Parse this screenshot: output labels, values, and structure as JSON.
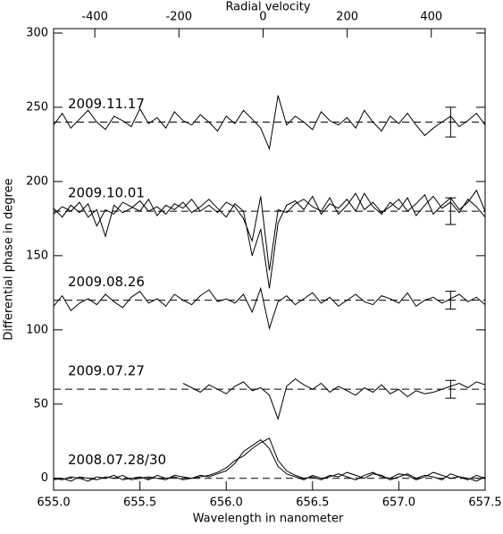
{
  "chart_data": {
    "type": "line",
    "xlabel": "Wavelength in nanometer",
    "ylabel": "Differential phase in degree",
    "x2label": "Radial velocity",
    "x": [
      655.0,
      655.05,
      655.1,
      655.15,
      655.2,
      655.25,
      655.3,
      655.35,
      655.4,
      655.45,
      655.5,
      655.55,
      655.6,
      655.65,
      655.7,
      655.75,
      655.8,
      655.85,
      655.9,
      655.95,
      656.0,
      656.05,
      656.1,
      656.15,
      656.2,
      656.25,
      656.3,
      656.35,
      656.4,
      656.45,
      656.5,
      656.55,
      656.6,
      656.65,
      656.7,
      656.75,
      656.8,
      656.85,
      656.9,
      656.95,
      657.0,
      657.05,
      657.1,
      657.15,
      657.2,
      657.25,
      657.3,
      657.35,
      657.4,
      657.45,
      657.5
    ],
    "series": [
      {
        "color": "#000000",
        "values": [
          238,
          246,
          236,
          242,
          248,
          240,
          235,
          244,
          241,
          237,
          249,
          239,
          243,
          236,
          247,
          241,
          238,
          245,
          240,
          234,
          244,
          239,
          248,
          242,
          236,
          222,
          258,
          238,
          244,
          240,
          235,
          247,
          241,
          238,
          243,
          236,
          248,
          240,
          234,
          244,
          239,
          246,
          238,
          231,
          236,
          240,
          244,
          237,
          241,
          246,
          238
        ]
      },
      {
        "color": "#000000",
        "values": [
          182,
          176,
          184,
          179,
          185,
          170,
          181,
          178,
          186,
          183,
          180,
          188,
          177,
          184,
          181,
          186,
          179,
          183,
          188,
          182,
          176,
          185,
          180,
          150,
          168,
          128,
          172,
          184,
          187,
          181,
          190,
          178,
          185,
          182,
          188,
          180,
          192,
          183,
          178,
          186,
          181,
          189,
          177,
          184,
          190,
          182,
          186,
          179,
          188,
          183,
          176
        ]
      },
      {
        "color": "#000000",
        "values": [
          178,
          183,
          180,
          186,
          176,
          181,
          163,
          184,
          179,
          182,
          187,
          180,
          183,
          178,
          185,
          182,
          188,
          180,
          184,
          179,
          186,
          183,
          175,
          160,
          190,
          140,
          181,
          179,
          185,
          188,
          183,
          180,
          189,
          178,
          184,
          192,
          181,
          186,
          179,
          183,
          188,
          180,
          185,
          191,
          178,
          184,
          189,
          181,
          186,
          194,
          180
        ]
      },
      {
        "color": "#000000",
        "values": [
          116,
          123,
          113,
          118,
          121,
          117,
          124,
          119,
          115,
          122,
          126,
          118,
          121,
          116,
          124,
          120,
          117,
          123,
          127,
          119,
          121,
          118,
          124,
          112,
          128,
          101,
          119,
          123,
          117,
          121,
          125,
          118,
          122,
          116,
          120,
          124,
          119,
          117,
          123,
          121,
          118,
          125,
          116,
          120,
          122,
          118,
          121,
          124,
          119,
          122,
          117
        ]
      },
      {
        "color": "#000000",
        "values": [
          null,
          null,
          null,
          null,
          null,
          null,
          null,
          null,
          null,
          null,
          null,
          null,
          null,
          null,
          null,
          64,
          61,
          58,
          63,
          60,
          57,
          62,
          65,
          59,
          61,
          56,
          40,
          62,
          67,
          63,
          60,
          64,
          58,
          62,
          59,
          56,
          61,
          58,
          63,
          57,
          60,
          55,
          59,
          57,
          58,
          60,
          62,
          64,
          61,
          65,
          63
        ]
      },
      {
        "color": "#000000",
        "values": [
          0,
          -1,
          1,
          0,
          -2,
          1,
          0,
          2,
          -1,
          0,
          1,
          -1,
          2,
          0,
          1,
          -1,
          0,
          2,
          1,
          3,
          5,
          10,
          18,
          22,
          26,
          20,
          8,
          3,
          1,
          -1,
          2,
          0,
          1,
          3,
          1,
          -1,
          2,
          4,
          1,
          0,
          3,
          2,
          -1,
          1,
          4,
          2,
          0,
          1,
          -1,
          2,
          0
        ]
      },
      {
        "color": "#000000",
        "values": [
          -1,
          0,
          -2,
          1,
          0,
          -1,
          1,
          0,
          2,
          -1,
          0,
          1,
          0,
          -1,
          2,
          1,
          0,
          1,
          2,
          4,
          7,
          12,
          15,
          20,
          24,
          27,
          12,
          5,
          2,
          0,
          1,
          -1,
          2,
          1,
          4,
          2,
          0,
          3,
          2,
          -1,
          1,
          3,
          0,
          2,
          1,
          -1,
          3,
          1,
          0,
          -2,
          1
        ]
      }
    ],
    "references": [
      {
        "label": "2009.11.17",
        "value": 240,
        "error": 10
      },
      {
        "label": "2009.10.01",
        "value": 180,
        "error": 9
      },
      {
        "label": "2009.08.26",
        "value": 120,
        "error": 6
      },
      {
        "label": "2009.07.27",
        "value": 60,
        "error": 6
      },
      {
        "label": "2008.07.28/30",
        "value": 0
      }
    ],
    "error_x": 657.3,
    "xlim": [
      655.0,
      657.5
    ],
    "xticks": [
      {
        "value": 655,
        "label": "655.0"
      },
      655.5,
      {
        "value": 656,
        "label": "656.0"
      },
      656.5,
      {
        "value": 657,
        "label": "657.0"
      },
      657.5
    ],
    "ylim": [
      -8,
      303
    ],
    "yticks": [
      0,
      50,
      100,
      150,
      200,
      250,
      300
    ],
    "x2lim": [
      -498,
      528
    ],
    "x2ticks": [
      -400,
      -200,
      0,
      200,
      400
    ]
  }
}
